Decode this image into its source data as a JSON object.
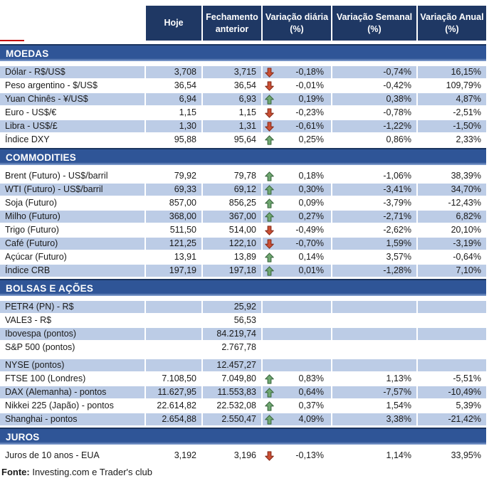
{
  "header": {
    "columns": [
      "Hoje",
      "Fechamento anterior",
      "Variação diária (%)",
      "Variação Semanal (%)",
      "Variação Anual (%)"
    ]
  },
  "sections": [
    {
      "title": "MOEDAS",
      "rows": [
        {
          "label": "Dólar - R$/US$",
          "hoje": "3,708",
          "fechamento": "3,715",
          "arrow": "down",
          "diaria": "-0,18%",
          "semanal": "-0,74%",
          "anual": "16,15%",
          "shaded": true
        },
        {
          "label": "Peso argentino - $/US$",
          "hoje": "36,54",
          "fechamento": "36,54",
          "arrow": "down",
          "diaria": "-0,01%",
          "semanal": "-0,42%",
          "anual": "109,79%",
          "shaded": false
        },
        {
          "label": "Yuan Chinês - ¥/US$",
          "hoje": "6,94",
          "fechamento": "6,93",
          "arrow": "up",
          "diaria": "0,19%",
          "semanal": "0,38%",
          "anual": "4,87%",
          "shaded": true
        },
        {
          "label": "Euro - US$/€",
          "hoje": "1,15",
          "fechamento": "1,15",
          "arrow": "down",
          "diaria": "-0,23%",
          "semanal": "-0,78%",
          "anual": "-2,51%",
          "shaded": false
        },
        {
          "label": "Libra - US$/£",
          "hoje": "1,30",
          "fechamento": "1,31",
          "arrow": "down",
          "diaria": "-0,61%",
          "semanal": "-1,22%",
          "anual": "-1,50%",
          "shaded": true
        },
        {
          "label": "Índice DXY",
          "hoje": "95,88",
          "fechamento": "95,64",
          "arrow": "up",
          "diaria": "0,25%",
          "semanal": "0,86%",
          "anual": "2,33%",
          "shaded": false
        }
      ]
    },
    {
      "title": "COMMODITIES",
      "rows": [
        {
          "label": "Brent (Futuro) - US$/barril",
          "hoje": "79,92",
          "fechamento": "79,78",
          "arrow": "up",
          "diaria": "0,18%",
          "semanal": "-1,06%",
          "anual": "38,39%",
          "shaded": false
        },
        {
          "label": "WTI (Futuro) - US$/barril",
          "hoje": "69,33",
          "fechamento": "69,12",
          "arrow": "up",
          "diaria": "0,30%",
          "semanal": "-3,41%",
          "anual": "34,70%",
          "shaded": true
        },
        {
          "label": "Soja (Futuro)",
          "hoje": "857,00",
          "fechamento": "856,25",
          "arrow": "up",
          "diaria": "0,09%",
          "semanal": "-3,79%",
          "anual": "-12,43%",
          "shaded": false
        },
        {
          "label": "Milho (Futuro)",
          "hoje": "368,00",
          "fechamento": "367,00",
          "arrow": "up",
          "diaria": "0,27%",
          "semanal": "-2,71%",
          "anual": "6,82%",
          "shaded": true
        },
        {
          "label": "Trigo (Futuro)",
          "hoje": "511,50",
          "fechamento": "514,00",
          "arrow": "down",
          "diaria": "-0,49%",
          "semanal": "-2,62%",
          "anual": "20,10%",
          "shaded": false
        },
        {
          "label": "Café (Futuro)",
          "hoje": "121,25",
          "fechamento": "122,10",
          "arrow": "down",
          "diaria": "-0,70%",
          "semanal": "1,59%",
          "anual": "-3,19%",
          "shaded": true
        },
        {
          "label": "Açúcar (Futuro)",
          "hoje": "13,91",
          "fechamento": "13,89",
          "arrow": "up",
          "diaria": "0,14%",
          "semanal": "3,57%",
          "anual": "-0,64%",
          "shaded": false
        },
        {
          "label": "Índice CRB",
          "hoje": "197,19",
          "fechamento": "197,18",
          "arrow": "up",
          "diaria": "0,01%",
          "semanal": "-1,28%",
          "anual": "7,10%",
          "shaded": true
        }
      ]
    },
    {
      "title": "BOLSAS E AÇÕES",
      "rows": [
        {
          "label": "PETR4 (PN) - R$",
          "hoje": "",
          "fechamento": "25,92",
          "arrow": "",
          "diaria": "",
          "semanal": "",
          "anual": "",
          "shaded": true
        },
        {
          "label": "VALE3 - R$",
          "hoje": "",
          "fechamento": "56,53",
          "arrow": "",
          "diaria": "",
          "semanal": "",
          "anual": "",
          "shaded": false
        },
        {
          "label": "Ibovespa (pontos)",
          "hoje": "",
          "fechamento": "84.219,74",
          "arrow": "",
          "diaria": "",
          "semanal": "",
          "anual": "",
          "shaded": true
        },
        {
          "label": "S&P 500 (pontos)",
          "hoje": "",
          "fechamento": "2.767,78",
          "arrow": "",
          "diaria": "",
          "semanal": "",
          "anual": "",
          "shaded": false
        },
        {
          "label": "NYSE (pontos)",
          "hoje": "",
          "fechamento": "12.457,27",
          "arrow": "",
          "diaria": "",
          "semanal": "",
          "anual": "",
          "shaded": true,
          "spacer_before": true
        },
        {
          "label": "FTSE 100 (Londres)",
          "hoje": "7.108,50",
          "fechamento": "7.049,80",
          "arrow": "up",
          "diaria": "0,83%",
          "semanal": "1,13%",
          "anual": "-5,51%",
          "shaded": false
        },
        {
          "label": "DAX (Alemanha) - pontos",
          "hoje": "11.627,95",
          "fechamento": "11.553,83",
          "arrow": "up",
          "diaria": "0,64%",
          "semanal": "-7,57%",
          "anual": "-10,49%",
          "shaded": true
        },
        {
          "label": "Nikkei 225 (Japão) - pontos",
          "hoje": "22.614,82",
          "fechamento": "22.532,08",
          "arrow": "up",
          "diaria": "0,37%",
          "semanal": "1,54%",
          "anual": "5,39%",
          "shaded": false
        },
        {
          "label": "Shanghai - pontos",
          "hoje": "2.654,88",
          "fechamento": "2.550,47",
          "arrow": "up",
          "diaria": "4,09%",
          "semanal": "3,38%",
          "anual": "-21,42%",
          "shaded": true
        }
      ]
    },
    {
      "title": "JUROS",
      "rows": [
        {
          "label": "Juros de 10 anos - EUA",
          "hoje": "3,192",
          "fechamento": "3,196",
          "arrow": "down",
          "diaria": "-0,13%",
          "semanal": "1,14%",
          "anual": "33,95%",
          "shaded": false
        }
      ]
    }
  ],
  "footer": {
    "label": "Fonte:",
    "text": " Investing.com e Trader's club"
  },
  "colors": {
    "header_bg": "#1F3864",
    "section_bg": "#2F5597",
    "section_border": "#1B355F",
    "section_fade": "#8CA6D4",
    "row_shaded_bg": "#BCCCE6",
    "text": "#1A1A1A",
    "arrow_up": "#6FA870",
    "arrow_up_border": "#3F6B44",
    "arrow_down": "#CB4F33",
    "arrow_down_border": "#8A3020",
    "artifact_red": "#C00000"
  }
}
